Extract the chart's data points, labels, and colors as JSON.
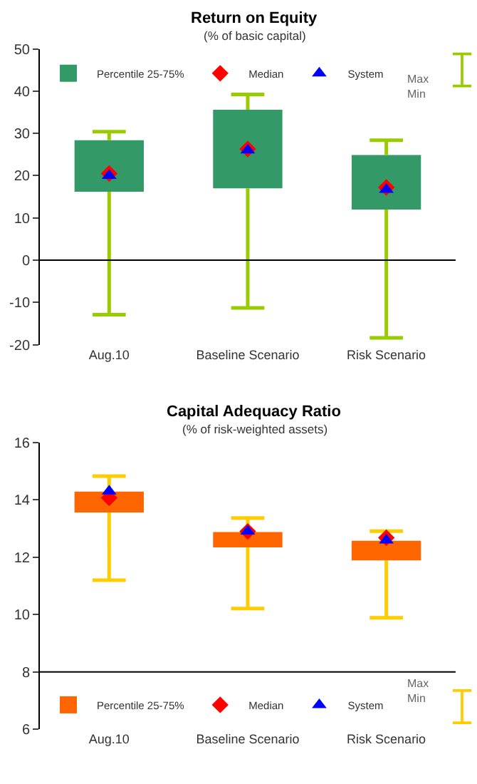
{
  "chart_data": [
    {
      "type": "box",
      "title": "Return on Equity",
      "subtitle": "(% of basic capital)",
      "categories": [
        "Aug.10",
        "Baseline Scenario",
        "Risk Scenario"
      ],
      "ylim": [
        -20,
        50
      ],
      "yticks": [
        -20,
        -10,
        0,
        10,
        20,
        30,
        40,
        50
      ],
      "legend": "top",
      "color": "#99cc00",
      "ref_lines": [
        {
          "axis": "y",
          "value": 0,
          "color": "#000000"
        }
      ],
      "annotations": [
        "Max\nMin"
      ],
      "series": [
        {
          "type": "box",
          "name": "Percentile 25-75%",
          "color": "#339966",
          "boxes": [
            {
              "low": -12.9,
              "q1": 16.2,
              "q3": 28.4,
              "high": 30.4
            },
            {
              "low": -11.3,
              "q1": 17,
              "q3": 35.6,
              "high": 39.2
            },
            {
              "low": -18.4,
              "q1": 12,
              "q3": 24.9,
              "high": 28.4
            }
          ]
        },
        {
          "type": "scatter",
          "name": "Median",
          "color": "#ff0000",
          "marker": "diamond",
          "values": [
            20.5,
            26.3,
            17.2
          ]
        },
        {
          "type": "scatter",
          "name": "System",
          "color": "#0000ff",
          "marker": "triangle",
          "values": [
            20,
            26,
            16.7
          ]
        }
      ]
    },
    {
      "type": "box",
      "title": "Capital Adequacy Ratio",
      "subtitle": "(% of risk-weighted assets)",
      "categories": [
        "Aug.10",
        "Baseline Scenario",
        "Risk Scenario"
      ],
      "ylim": [
        6,
        16
      ],
      "yticks": [
        6,
        8,
        10,
        12,
        14,
        16
      ],
      "legend": "bottom",
      "color": "#ffcc00",
      "ref_lines": [
        {
          "axis": "y",
          "value": 8,
          "color": "#000000"
        }
      ],
      "annotations": [
        "Max\nMin"
      ],
      "series": [
        {
          "type": "box",
          "name": "Percentile 25-75%",
          "color": "#ff6600",
          "boxes": [
            {
              "low": 11.2,
              "q1": 13.56,
              "q3": 14.29,
              "high": 14.83
            },
            {
              "low": 10.21,
              "q1": 12.34,
              "q3": 12.88,
              "high": 13.37
            },
            {
              "low": 9.89,
              "q1": 11.89,
              "q3": 12.57,
              "high": 12.91
            }
          ]
        },
        {
          "type": "scatter",
          "name": "Median",
          "color": "#ff0000",
          "marker": "diamond",
          "values": [
            14.07,
            12.9,
            12.68
          ]
        },
        {
          "type": "scatter",
          "name": "System",
          "color": "#0000ff",
          "marker": "triangle",
          "values": [
            14.3,
            12.9,
            12.59
          ]
        }
      ]
    }
  ]
}
